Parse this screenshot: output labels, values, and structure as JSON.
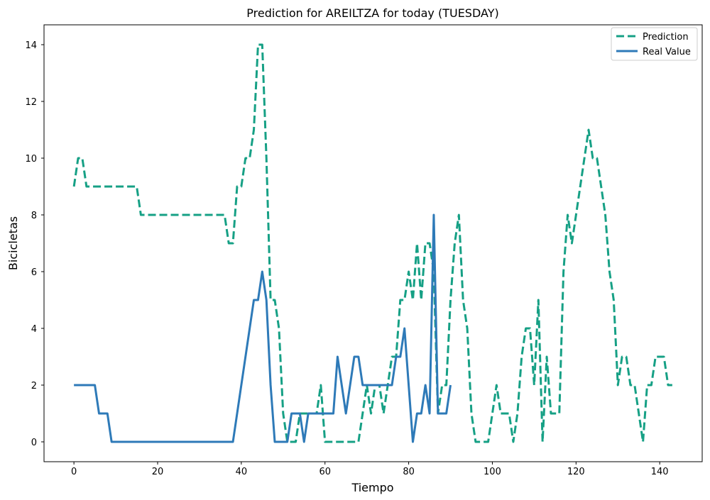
{
  "chart_data": {
    "type": "line",
    "title": "Prediction for AREILTZA for today (TUESDAY)",
    "xlabel": "Tiempo",
    "ylabel": "Bicicletas",
    "xlim": [
      -7.15,
      150.15
    ],
    "ylim": [
      -0.7,
      14.7
    ],
    "xticks": [
      0,
      20,
      40,
      60,
      80,
      100,
      120,
      140
    ],
    "yticks": [
      0,
      2,
      4,
      6,
      8,
      10,
      12,
      14
    ],
    "grid": false,
    "legend_position": "top-right",
    "series": [
      {
        "name": "Prediction",
        "color": "#16a085",
        "dash": "dashed",
        "x": [
          0,
          1,
          2,
          3,
          4,
          5,
          6,
          7,
          8,
          9,
          10,
          11,
          12,
          13,
          14,
          15,
          16,
          17,
          18,
          19,
          20,
          21,
          22,
          23,
          24,
          25,
          26,
          27,
          28,
          29,
          30,
          31,
          32,
          33,
          34,
          35,
          36,
          37,
          38,
          39,
          40,
          41,
          42,
          43,
          44,
          45,
          46,
          47,
          48,
          49,
          50,
          51,
          52,
          53,
          54,
          55,
          56,
          57,
          58,
          59,
          60,
          61,
          62,
          63,
          64,
          65,
          66,
          67,
          68,
          69,
          70,
          71,
          72,
          73,
          74,
          75,
          76,
          77,
          78,
          79,
          80,
          81,
          82,
          83,
          84,
          85,
          86,
          87,
          88,
          89,
          90,
          91,
          92,
          93,
          94,
          95,
          96,
          97,
          98,
          99,
          100,
          101,
          102,
          103,
          104,
          105,
          106,
          107,
          108,
          109,
          110,
          111,
          112,
          113,
          114,
          115,
          116,
          117,
          118,
          119,
          120,
          121,
          122,
          123,
          124,
          125,
          126,
          127,
          128,
          129,
          130,
          131,
          132,
          133,
          134,
          135,
          136,
          137,
          138,
          139,
          140,
          141,
          142,
          143
        ],
        "y": [
          9,
          10,
          10,
          9,
          9,
          9,
          9,
          9,
          9,
          9,
          9,
          9,
          9,
          9,
          9,
          9,
          8,
          8,
          8,
          8,
          8,
          8,
          8,
          8,
          8,
          8,
          8,
          8,
          8,
          8,
          8,
          8,
          8,
          8,
          8,
          8,
          8,
          7,
          7,
          9,
          9,
          10,
          10,
          11,
          14,
          14,
          10,
          5,
          5,
          4,
          1,
          0,
          0,
          0,
          1,
          1,
          1,
          1,
          1,
          2,
          0,
          0,
          0,
          0,
          0,
          0,
          0,
          0,
          0,
          1,
          2,
          1,
          2,
          2,
          1,
          2,
          3,
          3,
          5,
          5,
          6,
          5,
          7,
          5,
          7,
          7,
          6,
          1,
          2,
          2,
          5,
          7,
          8,
          5,
          4,
          1,
          0,
          0,
          0,
          0,
          1,
          2,
          1,
          1,
          1,
          0,
          1,
          3,
          4,
          4,
          2,
          5,
          0,
          3,
          1,
          1,
          1,
          6,
          8,
          7,
          8,
          9,
          10,
          11,
          10,
          10,
          9,
          8,
          6,
          5,
          2,
          3,
          3,
          2,
          2,
          1,
          0,
          2,
          2,
          3,
          3,
          3,
          2,
          2
        ]
      },
      {
        "name": "Real Value",
        "color": "#2e7ab8",
        "dash": "solid",
        "x": [
          0,
          1,
          2,
          3,
          4,
          5,
          6,
          7,
          8,
          9,
          10,
          11,
          12,
          13,
          14,
          15,
          16,
          17,
          18,
          19,
          20,
          21,
          22,
          23,
          24,
          25,
          26,
          27,
          28,
          29,
          30,
          31,
          32,
          33,
          34,
          35,
          36,
          37,
          38,
          39,
          40,
          41,
          42,
          43,
          44,
          45,
          46,
          47,
          48,
          49,
          50,
          51,
          52,
          53,
          54,
          55,
          56,
          57,
          58,
          59,
          60,
          61,
          62,
          63,
          64,
          65,
          66,
          67,
          68,
          69,
          70,
          71,
          72,
          73,
          74,
          75,
          76,
          77,
          78,
          79,
          80,
          81,
          82,
          83,
          84,
          85,
          86,
          87,
          88,
          89,
          90
        ],
        "y": [
          2,
          2,
          2,
          2,
          2,
          2,
          1,
          1,
          1,
          0,
          0,
          0,
          0,
          0,
          0,
          0,
          0,
          0,
          0,
          0,
          0,
          0,
          0,
          0,
          0,
          0,
          0,
          0,
          0,
          0,
          0,
          0,
          0,
          0,
          0,
          0,
          0,
          0,
          0,
          1,
          2,
          3,
          4,
          5,
          5,
          6,
          5,
          2,
          0,
          0,
          0,
          0,
          1,
          1,
          1,
          0,
          1,
          1,
          1,
          1,
          1,
          1,
          1,
          3,
          2,
          1,
          2,
          3,
          3,
          2,
          2,
          2,
          2,
          2,
          2,
          2,
          2,
          3,
          3,
          4,
          2,
          0,
          1,
          1,
          2,
          1,
          8,
          1,
          1,
          1,
          2
        ]
      }
    ]
  }
}
